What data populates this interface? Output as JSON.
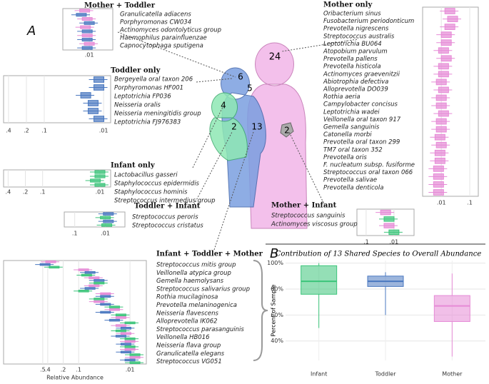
{
  "panel_a": {
    "label": "A",
    "venn": {
      "counts": [
        24,
        6,
        5,
        4,
        2,
        13,
        2
      ]
    },
    "panels": [
      {
        "title": "Mother + Toddler",
        "species": [
          "Granulicatella adiacens",
          "Porphyromonas CW034",
          "Actinomyces odontolyticus group",
          "Haemophilus parainfluenzae",
          "Capnocytophaga sputigena"
        ],
        "colors": [
          "#e68ad6",
          "#4a78c0"
        ],
        "values": [
          [
            0.015,
            0.02
          ],
          [
            0.012,
            0.01
          ],
          [
            0.014,
            0.012
          ],
          [
            0.012,
            0.012
          ],
          [
            0.01,
            0.012
          ]
        ],
        "xscale": "log",
        "xlim": [
          0.1,
          0.0013
        ],
        "xticks": [
          {
            "value": 0.01,
            "label": ".01"
          }
        ]
      },
      {
        "title": "Toddler only",
        "species": [
          "Bergeyella oral taxon 206",
          "Porphyromonas HF001",
          "Leptotrichia FP036",
          "Neisseria oralis",
          "Neisseria meningitidis group",
          "Leptotrichia FJ976383"
        ],
        "colors": [
          "#4a78c0"
        ],
        "values": [
          [
            0.012
          ],
          [
            0.012
          ],
          [
            0.02
          ],
          [
            0.015
          ],
          [
            0.015
          ],
          [
            0.012
          ]
        ],
        "xscale": "log",
        "xlim": [
          0.485,
          0.0076
        ],
        "xticks": [
          {
            "value": 0.4,
            "label": ".4"
          },
          {
            "value": 0.2,
            "label": ".2"
          },
          {
            "value": 0.1,
            "label": ".1"
          },
          {
            "value": 0.01,
            "label": ".01"
          }
        ]
      },
      {
        "title": "Infant only",
        "species": [
          "Lactobacillus gasseri",
          "Staphylococcus epidermidis",
          "Staphylococcus hominis",
          "Streptococcus intermedius group"
        ],
        "colors": [
          "#3cc47a"
        ],
        "values": [
          [
            0.01
          ],
          [
            0.01
          ],
          [
            0.012
          ],
          [
            0.01
          ]
        ],
        "xscale": "log",
        "xlim": [
          0.48,
          0.0065
        ],
        "xticks": [
          {
            "value": 0.4,
            "label": ".4"
          },
          {
            "value": 0.2,
            "label": ".2"
          },
          {
            "value": 0.1,
            "label": ".1"
          },
          {
            "value": 0.01,
            "label": ".01"
          }
        ]
      },
      {
        "title": "Toddler + Infant",
        "species": [
          "Streptococcus peroris",
          "Streptococcus cristatus"
        ],
        "colors": [
          "#4a78c0",
          "#3cc47a"
        ],
        "values": [
          [
            0.008,
            0.01
          ],
          [
            0.008,
            0.009
          ]
        ],
        "xscale": "log",
        "xlim": [
          0.22,
          0.0023
        ],
        "xticks": [
          {
            "value": 0.1,
            "label": ".1"
          },
          {
            "value": 0.01,
            "label": ".01"
          }
        ]
      },
      {
        "title": "Infant + Toddler + Mother",
        "species": [
          "Streptococcus mitis group",
          "Veillonella atypica group",
          "Gemella haemolysans",
          "Streptococcus salivarius group",
          "Rothia mucilaginosa",
          "Prevotella melaninogenica",
          "Neisseria flavescens",
          "Alloprevotella IK062",
          "Streptococcus parasanguinis",
          "Veillonella HB016",
          "Neisseria flava group",
          "Granulicatella elegans",
          "Streptococcus VG051"
        ],
        "colors": [
          "#e68ad6",
          "#4a78c0",
          "#3cc47a"
        ],
        "values": [
          [
            0.35,
            0.45,
            0.3
          ],
          [
            0.08,
            0.06,
            0.07
          ],
          [
            0.05,
            0.04,
            0.04
          ],
          [
            0.05,
            0.06,
            0.08
          ],
          [
            0.03,
            0.03,
            0.04
          ],
          [
            0.04,
            0.03,
            0.02
          ],
          [
            0.02,
            0.03,
            0.015
          ],
          [
            0.015,
            0.02,
            0.01
          ],
          [
            0.015,
            0.012,
            0.015
          ],
          [
            0.012,
            0.015,
            0.01
          ],
          [
            0.01,
            0.012,
            0.01
          ],
          [
            0.01,
            0.012,
            0.008
          ],
          [
            0.008,
            0.01,
            0.008
          ]
        ],
        "xscale": "log",
        "xlim": [
          2.9,
          0.0048
        ],
        "xticks": [
          {
            "value": 0.5,
            "label": ".5"
          },
          {
            "value": 0.4,
            "label": ".4"
          },
          {
            "value": 0.2,
            "label": ".2"
          },
          {
            "value": 0.1,
            "label": ".1"
          },
          {
            "value": 0.01,
            "label": ".01"
          }
        ],
        "xlabel": "Relative Abundance"
      },
      {
        "title": "Mother only",
        "species": [
          "Oribacterium sinus",
          "Fusobacterium periodonticum",
          "Prevotella nigrescens",
          "Streptococcus australis",
          "Leptotrichia BU064",
          "Atopobium parvulum",
          "Prevotella pallens",
          "Prevotella histicola",
          "Actinomyces graevenitzii",
          "Abiotrophia defectiva",
          "Alloprevotella DO039",
          "Rothia aeria",
          "Campylobacter concisus",
          "Leptotrichia wadei",
          "Veillonella oral taxon 917",
          "Gemella sanguinis",
          "Catonella morbi",
          "Prevotella oral taxon 299",
          "TM7 oral taxon 352",
          "Prevotella oris",
          "F. nucleatum subsp. fusiforme",
          "Streptococcus oral taxon 066",
          "Prevotella salivae",
          "Prevotella denticola"
        ],
        "colors": [
          "#e68ad6"
        ],
        "values": [
          [
            0.02
          ],
          [
            0.025
          ],
          [
            0.02
          ],
          [
            0.015
          ],
          [
            0.015
          ],
          [
            0.012
          ],
          [
            0.015
          ],
          [
            0.012
          ],
          [
            0.012
          ],
          [
            0.01
          ],
          [
            0.012
          ],
          [
            0.01
          ],
          [
            0.01
          ],
          [
            0.012
          ],
          [
            0.01
          ],
          [
            0.01
          ],
          [
            0.009
          ],
          [
            0.01
          ],
          [
            0.009
          ],
          [
            0.009
          ],
          [
            0.008
          ],
          [
            0.008
          ],
          [
            0.008
          ],
          [
            0.008
          ]
        ],
        "xscale": "log",
        "xlim": [
          0.0022,
          0.2
        ],
        "xticks": [
          {
            "value": 0.01,
            "label": ".01"
          },
          {
            "value": 0.1,
            "label": ".1"
          }
        ]
      },
      {
        "title": "Mother + Infant",
        "species": [
          "Streptococcus sanguinis",
          "Actinomyces viscosus group"
        ],
        "colors": [
          "#e68ad6",
          "#3cc47a"
        ],
        "values": [
          [
            0.02,
            0.015
          ],
          [
            0.015,
            0.01
          ]
        ],
        "xscale": "log",
        "xlim": [
          0.214,
          0.0019
        ],
        "xticks": [
          {
            "value": 0.1,
            "label": ".1"
          },
          {
            "value": 0.01,
            "label": ".01"
          }
        ]
      }
    ]
  },
  "chart_data": {
    "type": "box",
    "label": "B",
    "title": "Contribution of 13 Shared Species to Overall Abundance",
    "ylabel": "Percent of Sample",
    "categories": [
      "Infant",
      "Toddler",
      "Mother"
    ],
    "colors": [
      "#3cc47a",
      "#4a78c0",
      "#e68ad6"
    ],
    "whisker_low": [
      50,
      60,
      28
    ],
    "q1": [
      76,
      82,
      55
    ],
    "median": [
      86,
      86,
      67
    ],
    "q3": [
      98,
      90,
      75
    ],
    "whisker_high": [
      100,
      93,
      92
    ],
    "ylim": [
      25,
      102
    ],
    "yticks": [
      {
        "value": 40,
        "label": "40%"
      },
      {
        "value": 60,
        "label": "60%"
      },
      {
        "value": 80,
        "label": "80%"
      },
      {
        "value": 100,
        "label": "100%"
      }
    ],
    "grid": true
  }
}
